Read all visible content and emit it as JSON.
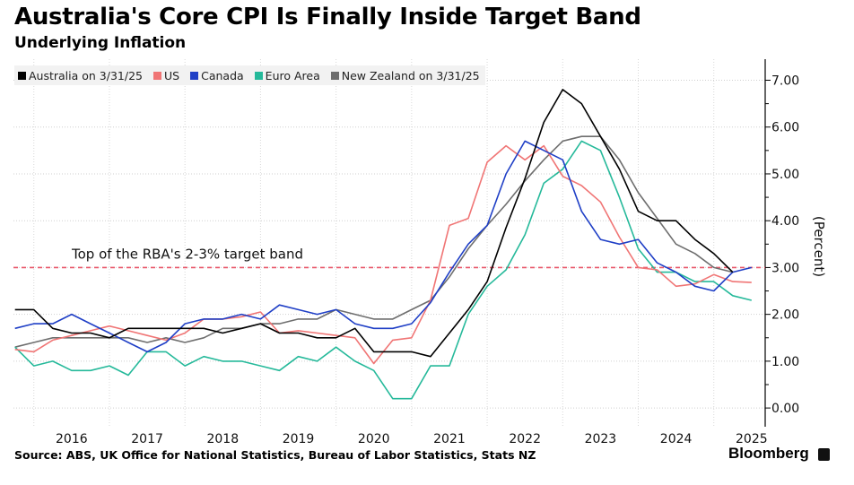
{
  "header": {
    "title": "Australia's Core CPI Is Finally Inside Target Band",
    "subtitle": "Underlying Inflation"
  },
  "footer": {
    "source": "Source: ABS, UK Office for National Statistics, Bureau of Labor Statistics, Stats NZ",
    "brand": "Bloomberg"
  },
  "chart_data": {
    "type": "line",
    "title": "Australia's Core CPI Is Finally Inside Target Band",
    "subtitle": "Underlying Inflation",
    "xlabel": "",
    "ylabel": "(Percent)",
    "xlim": [
      2015.73,
      2025.68
    ],
    "ylim": [
      -0.4,
      7.45
    ],
    "x_ticks": [
      "2016",
      "2017",
      "2018",
      "2019",
      "2020",
      "2021",
      "2022",
      "2023",
      "2024",
      "2025"
    ],
    "y_ticks": [
      "0.00",
      "1.00",
      "2.00",
      "3.00",
      "4.00",
      "5.00",
      "6.00",
      "7.00"
    ],
    "grid": true,
    "legend_position": "top-left",
    "x_start": 2015.75,
    "x_step": 0.25,
    "reference_line": {
      "value": 3.0,
      "label": "Top of the RBA's 2-3% target band",
      "color": "#e8576a"
    },
    "series": [
      {
        "name": "Australia on 3/31/25",
        "color": "#000000",
        "values": [
          2.1,
          2.1,
          1.7,
          1.6,
          1.6,
          1.5,
          1.7,
          1.7,
          1.7,
          1.7,
          1.7,
          1.6,
          1.7,
          1.8,
          1.6,
          1.6,
          1.5,
          1.5,
          1.7,
          1.2,
          1.2,
          1.2,
          1.1,
          1.6,
          2.1,
          2.7,
          3.85,
          4.9,
          6.1,
          6.8,
          6.5,
          5.8,
          5.1,
          4.2,
          4.0,
          4.0,
          3.6,
          3.3,
          2.9
        ]
      },
      {
        "name": "US",
        "color": "#f07575",
        "values": [
          1.25,
          1.2,
          1.45,
          1.55,
          1.65,
          1.75,
          1.65,
          1.55,
          1.45,
          1.6,
          1.9,
          1.9,
          1.95,
          2.05,
          1.6,
          1.65,
          1.6,
          1.55,
          1.5,
          0.95,
          1.45,
          1.5,
          2.3,
          3.9,
          4.05,
          5.25,
          5.6,
          5.3,
          5.6,
          4.95,
          4.75,
          4.4,
          3.65,
          3.0,
          2.95,
          2.6,
          2.65,
          2.85,
          2.7,
          2.68
        ]
      },
      {
        "name": "Canada",
        "color": "#1f3fc6",
        "values": [
          1.7,
          1.8,
          1.8,
          2.0,
          1.8,
          1.6,
          1.4,
          1.2,
          1.4,
          1.8,
          1.9,
          1.9,
          2.0,
          1.9,
          2.2,
          2.1,
          2.0,
          2.1,
          1.8,
          1.7,
          1.7,
          1.8,
          2.25,
          2.9,
          3.5,
          3.9,
          5.0,
          5.7,
          5.5,
          5.3,
          4.2,
          3.6,
          3.5,
          3.6,
          3.1,
          2.9,
          2.6,
          2.5,
          2.9,
          3.0
        ]
      },
      {
        "name": "Euro Area",
        "color": "#25b99a",
        "values": [
          1.3,
          0.9,
          1.0,
          0.8,
          0.8,
          0.9,
          0.7,
          1.2,
          1.2,
          0.9,
          1.1,
          1.0,
          1.0,
          0.9,
          0.8,
          1.1,
          1.0,
          1.3,
          1.0,
          0.8,
          0.2,
          0.2,
          0.9,
          0.9,
          2.0,
          2.6,
          2.95,
          3.7,
          4.8,
          5.1,
          5.7,
          5.5,
          4.5,
          3.4,
          2.9,
          2.9,
          2.7,
          2.7,
          2.4,
          2.3
        ]
      },
      {
        "name": "New Zealand on 3/31/25",
        "color": "#6e6e6e",
        "values": [
          1.3,
          1.4,
          1.5,
          1.5,
          1.5,
          1.5,
          1.5,
          1.4,
          1.5,
          1.4,
          1.5,
          1.7,
          1.7,
          1.8,
          1.8,
          1.9,
          1.9,
          2.1,
          2.0,
          1.9,
          1.9,
          2.1,
          2.3,
          2.8,
          3.4,
          3.9,
          4.35,
          4.85,
          5.3,
          5.7,
          5.8,
          5.8,
          5.3,
          4.6,
          4.05,
          3.5,
          3.3,
          3.0,
          2.9
        ]
      }
    ]
  }
}
